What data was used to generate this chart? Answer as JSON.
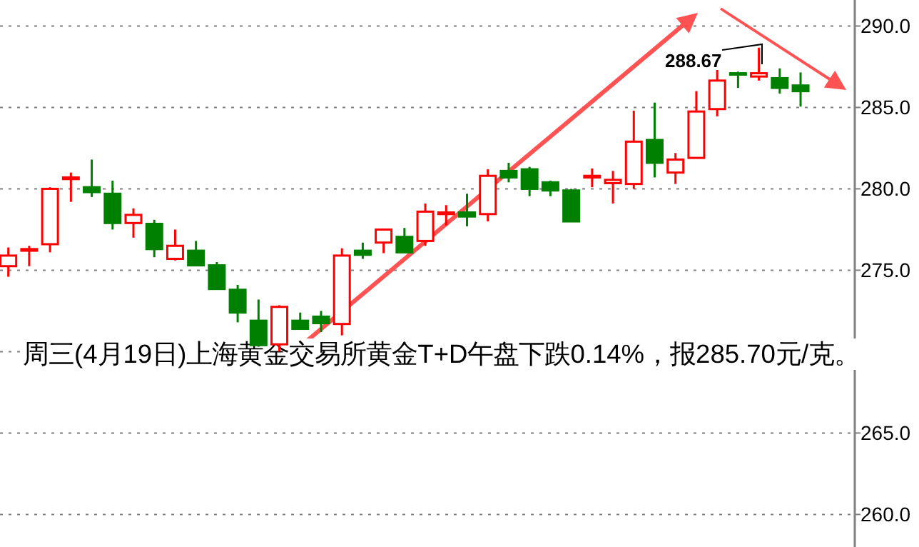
{
  "chart_data": {
    "type": "candlestick",
    "categories": [
      null,
      null,
      null,
      null,
      null,
      null,
      null,
      null,
      null,
      null,
      null,
      null,
      null,
      null,
      null,
      null,
      null,
      null,
      null,
      null,
      null,
      null,
      null,
      null,
      null,
      null,
      null,
      null,
      null,
      null,
      null,
      null,
      null,
      null,
      null,
      null,
      null,
      null,
      null
    ],
    "ohlc": [
      [
        275.25,
        276.4,
        274.6,
        275.9
      ],
      [
        276.2,
        276.5,
        275.25,
        276.3
      ],
      [
        276.6,
        280.1,
        276.1,
        280.0
      ],
      [
        280.6,
        281.0,
        279.2,
        280.7
      ],
      [
        280.1,
        281.8,
        279.5,
        279.8
      ],
      [
        279.7,
        280.5,
        277.5,
        277.9
      ],
      [
        277.9,
        278.8,
        277.0,
        278.4
      ],
      [
        277.85,
        278.1,
        275.8,
        276.3
      ],
      [
        275.7,
        277.5,
        275.6,
        276.5
      ],
      [
        276.2,
        276.8,
        275.3,
        275.3
      ],
      [
        275.3,
        275.5,
        273.85,
        273.85
      ],
      [
        273.8,
        274.1,
        271.8,
        272.4
      ],
      [
        271.9,
        273.2,
        270.3,
        270.4
      ],
      [
        270.45,
        272.85,
        270.0,
        272.75
      ],
      [
        271.9,
        272.4,
        271.4,
        271.4
      ],
      [
        272.15,
        272.5,
        271.2,
        271.75
      ],
      [
        271.7,
        276.35,
        271.0,
        275.9
      ],
      [
        276.2,
        276.7,
        275.7,
        275.95
      ],
      [
        276.7,
        277.55,
        276.05,
        277.5
      ],
      [
        277.05,
        277.6,
        276.1,
        276.1
      ],
      [
        276.8,
        279.1,
        276.5,
        278.6
      ],
      [
        278.45,
        279.0,
        277.75,
        278.55
      ],
      [
        278.55,
        279.7,
        277.7,
        278.3
      ],
      [
        278.45,
        281.2,
        278.0,
        280.8
      ],
      [
        281.1,
        281.6,
        280.4,
        280.7
      ],
      [
        281.2,
        281.35,
        279.55,
        280.0
      ],
      [
        280.4,
        280.5,
        279.55,
        279.9
      ],
      [
        279.9,
        280.0,
        278.0,
        278.0
      ],
      [
        280.7,
        281.25,
        280.1,
        280.8
      ],
      [
        280.35,
        281.1,
        279.1,
        280.55
      ],
      [
        280.3,
        284.8,
        280.0,
        282.9
      ],
      [
        283.0,
        285.3,
        280.7,
        281.6
      ],
      [
        281.0,
        282.2,
        280.3,
        281.8
      ],
      [
        281.9,
        286.0,
        281.9,
        284.75
      ],
      [
        284.9,
        287.3,
        284.45,
        286.65
      ],
      [
        287.1,
        287.2,
        286.2,
        287.05
      ],
      [
        286.9,
        288.67,
        286.65,
        287.1
      ],
      [
        286.8,
        287.4,
        285.85,
        286.2
      ],
      [
        286.35,
        287.15,
        285.05,
        286.0
      ]
    ],
    "colors": [
      "#ff0000",
      "#ff0000",
      "#ff0000",
      "#ff0000",
      "#008000",
      "#008000",
      "#ff0000",
      "#008000",
      "#ff0000",
      "#008000",
      "#008000",
      "#008000",
      "#008000",
      "#ff0000",
      "#008000",
      "#008000",
      "#ff0000",
      "#008000",
      "#ff0000",
      "#008000",
      "#ff0000",
      "#ff0000",
      "#008000",
      "#ff0000",
      "#008000",
      "#008000",
      "#008000",
      "#008000",
      "#ff0000",
      "#ff0000",
      "#ff0000",
      "#008000",
      "#ff0000",
      "#ff0000",
      "#ff0000",
      "#008000",
      "#ff0000",
      "#008000",
      "#008000"
    ],
    "ylim": [
      258.0,
      291.6
    ],
    "yticks": [
      {
        "value": 260,
        "label": "260.0"
      },
      {
        "value": 265,
        "label": "265.0"
      },
      {
        "value": 270,
        "label": null
      },
      {
        "value": 275,
        "label": "275.0"
      },
      {
        "value": 280,
        "label": "280.0"
      },
      {
        "value": 285,
        "label": "285.0"
      },
      {
        "value": 290,
        "label": "290.0"
      }
    ],
    "grid": "y",
    "tick_labels": "y",
    "annotations": [
      "288.67",
      "周三(4月19日)上海黄金交易所黄金T+D午盘下跌0.14%，报285.70元/克。"
    ]
  }
}
